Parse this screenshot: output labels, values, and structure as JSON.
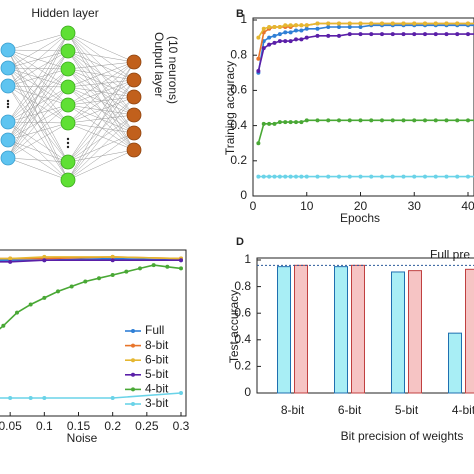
{
  "diagram": {
    "hidden_label": "Hidden layer",
    "output_label": [
      "Output layer",
      "(10 neurons)"
    ]
  },
  "chart_data": [
    {
      "type": "line",
      "panel": "B",
      "xlabel": "Epochs",
      "ylabel": "Training accuracy",
      "xlim": [
        0,
        44
      ],
      "ylim": [
        0,
        1
      ],
      "xticks": [
        0,
        10,
        20,
        30,
        40
      ],
      "yticks": [
        0,
        0.2,
        0.4,
        0.6,
        0.8,
        1
      ],
      "x": [
        1,
        2,
        3,
        4,
        5,
        6,
        7,
        8,
        9,
        10,
        12,
        14,
        16,
        18,
        20,
        22,
        24,
        26,
        28,
        30,
        32,
        34,
        36,
        38,
        40,
        42
      ],
      "series": [
        {
          "name": "Full",
          "color": "#2f7fd6",
          "values": [
            0.7,
            0.88,
            0.9,
            0.91,
            0.92,
            0.93,
            0.93,
            0.94,
            0.94,
            0.95,
            0.95,
            0.96,
            0.96,
            0.96,
            0.96,
            0.97,
            0.97,
            0.97,
            0.97,
            0.97,
            0.97,
            0.97,
            0.97,
            0.97,
            0.97,
            0.97
          ]
        },
        {
          "name": "8-bit",
          "color": "#e8742a",
          "values": [
            0.78,
            0.93,
            0.95,
            0.96,
            0.96,
            0.96,
            0.96,
            0.97,
            0.97,
            0.97,
            0.98,
            0.98,
            0.98,
            0.98,
            0.98,
            0.98,
            0.98,
            0.98,
            0.98,
            0.98,
            0.98,
            0.98,
            0.98,
            0.98,
            0.98,
            0.98
          ]
        },
        {
          "name": "6-bit",
          "color": "#e5b730",
          "values": [
            0.9,
            0.95,
            0.96,
            0.96,
            0.96,
            0.97,
            0.97,
            0.97,
            0.97,
            0.97,
            0.98,
            0.98,
            0.98,
            0.98,
            0.98,
            0.98,
            0.98,
            0.98,
            0.98,
            0.98,
            0.98,
            0.98,
            0.98,
            0.98,
            0.98,
            0.98
          ]
        },
        {
          "name": "5-bit",
          "color": "#5a1fa8",
          "values": [
            0.71,
            0.84,
            0.86,
            0.87,
            0.88,
            0.88,
            0.88,
            0.89,
            0.89,
            0.9,
            0.91,
            0.91,
            0.91,
            0.92,
            0.92,
            0.92,
            0.92,
            0.92,
            0.92,
            0.92,
            0.92,
            0.92,
            0.92,
            0.92,
            0.92,
            0.92
          ]
        },
        {
          "name": "4-bit",
          "color": "#49a835",
          "values": [
            0.3,
            0.41,
            0.41,
            0.41,
            0.42,
            0.42,
            0.42,
            0.42,
            0.42,
            0.43,
            0.43,
            0.43,
            0.43,
            0.43,
            0.43,
            0.43,
            0.43,
            0.43,
            0.43,
            0.43,
            0.43,
            0.43,
            0.43,
            0.43,
            0.43,
            0.43
          ]
        },
        {
          "name": "3-bit",
          "color": "#6ad3e8",
          "values": [
            0.11,
            0.11,
            0.11,
            0.11,
            0.11,
            0.11,
            0.11,
            0.11,
            0.11,
            0.11,
            0.11,
            0.11,
            0.11,
            0.11,
            0.11,
            0.11,
            0.11,
            0.11,
            0.11,
            0.11,
            0.11,
            0.11,
            0.11,
            0.11,
            0.11,
            0.11
          ]
        }
      ]
    },
    {
      "type": "line",
      "xlabel": "Noise",
      "xlim": [
        0,
        0.3
      ],
      "ylim": [
        0,
        1
      ],
      "xticks": [
        {
          "value": 0.05,
          "label": "0.05"
        },
        0.1,
        0.15,
        0.2,
        0.25,
        0.3
      ],
      "legend": "lower right",
      "series": [
        {
          "name": "Full",
          "color": "#2f7fd6",
          "x": [
            0,
            0.05,
            0.1,
            0.2,
            0.3
          ],
          "values": [
            0.95,
            0.95,
            0.95,
            0.96,
            0.95
          ]
        },
        {
          "name": "8-bit",
          "color": "#e8742a",
          "x": [
            0,
            0.05,
            0.1,
            0.2,
            0.3
          ],
          "values": [
            0.96,
            0.96,
            0.96,
            0.97,
            0.96
          ]
        },
        {
          "name": "6-bit",
          "color": "#e5b730",
          "x": [
            0,
            0.05,
            0.1,
            0.2,
            0.3
          ],
          "values": [
            0.96,
            0.96,
            0.97,
            0.97,
            0.96
          ]
        },
        {
          "name": "5-bit",
          "color": "#5a1fa8",
          "x": [
            0,
            0.05,
            0.1,
            0.2,
            0.3
          ],
          "values": [
            0.94,
            0.94,
            0.95,
            0.95,
            0.95
          ]
        },
        {
          "name": "4-bit",
          "color": "#49a835",
          "x": [
            0,
            0.02,
            0.04,
            0.06,
            0.08,
            0.1,
            0.12,
            0.14,
            0.16,
            0.18,
            0.2,
            0.22,
            0.24,
            0.26,
            0.28,
            0.3
          ],
          "values": [
            0.42,
            0.48,
            0.55,
            0.63,
            0.68,
            0.72,
            0.76,
            0.79,
            0.82,
            0.84,
            0.86,
            0.88,
            0.9,
            0.92,
            0.91,
            0.9
          ]
        },
        {
          "name": "3-bit",
          "color": "#6ad3e8",
          "x": [
            0,
            0.05,
            0.08,
            0.1,
            0.2,
            0.3
          ],
          "values": [
            0.11,
            0.11,
            0.11,
            0.11,
            0.11,
            0.14
          ]
        }
      ]
    },
    {
      "type": "bar",
      "panel": "D",
      "ylabel": "Test accuracy",
      "xlabel": "Bit precision of weights",
      "categories": [
        "8-bit",
        "6-bit",
        "5-bit",
        "4-bit"
      ],
      "ylim": [
        0,
        1
      ],
      "yticks": [
        0,
        0.2,
        0.4,
        0.6,
        0.8,
        1
      ],
      "reference": {
        "label": "Full pre",
        "value": 0.96
      },
      "series": [
        {
          "color": "#a8eef5",
          "values": [
            0.95,
            0.95,
            0.91,
            0.45
          ]
        },
        {
          "color": "#f6c4c4",
          "values": [
            0.96,
            0.96,
            0.92,
            0.93
          ]
        }
      ]
    }
  ]
}
